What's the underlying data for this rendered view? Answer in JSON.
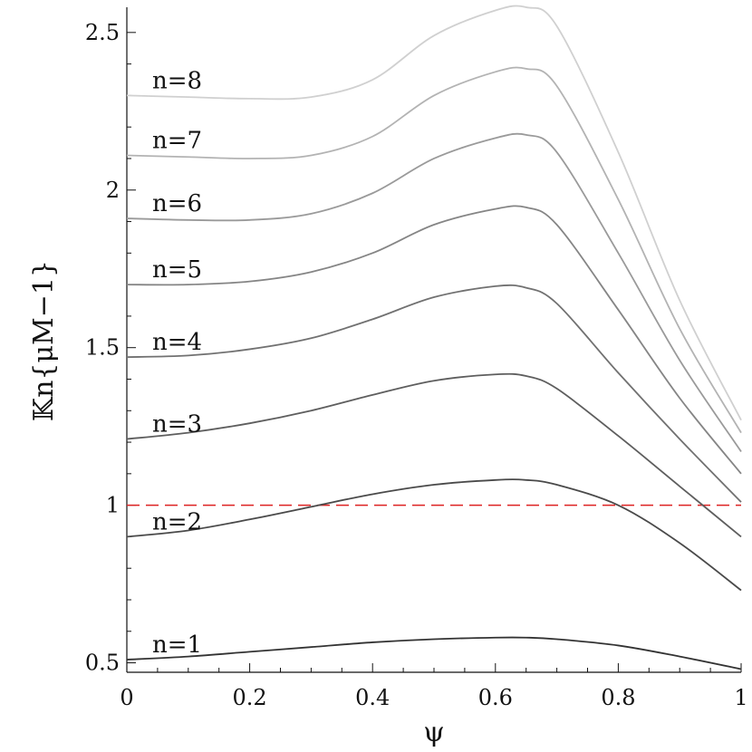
{
  "chart_data": {
    "type": "line",
    "xlabel": "ψ",
    "ylabel": "𝕂n{μM−1}",
    "xlim": [
      0,
      1
    ],
    "ylim": [
      0.47,
      2.58
    ],
    "x_ticks": [
      "0",
      "0.2",
      "0.4",
      "0.6",
      "0.8",
      "1"
    ],
    "y_ticks": [
      "0.5",
      "1",
      "1.5",
      "2",
      "2.5"
    ],
    "x": [
      0,
      0.1,
      0.2,
      0.3,
      0.4,
      0.5,
      0.6,
      0.65,
      0.7,
      0.8,
      0.9,
      1.0
    ],
    "series": [
      {
        "name": "n=1",
        "color": "#333333",
        "values": [
          0.51,
          0.52,
          0.535,
          0.55,
          0.565,
          0.575,
          0.58,
          0.58,
          0.575,
          0.555,
          0.52,
          0.48
        ]
      },
      {
        "name": "n=2",
        "color": "#4a4a4a",
        "values": [
          0.9,
          0.92,
          0.955,
          0.995,
          1.035,
          1.065,
          1.08,
          1.08,
          1.065,
          1.0,
          0.88,
          0.73
        ]
      },
      {
        "name": "n=3",
        "color": "#5e5e5e",
        "values": [
          1.21,
          1.23,
          1.26,
          1.3,
          1.35,
          1.395,
          1.415,
          1.41,
          1.37,
          1.22,
          1.06,
          0.9
        ]
      },
      {
        "name": "n=4",
        "color": "#717171",
        "values": [
          1.47,
          1.475,
          1.495,
          1.53,
          1.59,
          1.66,
          1.695,
          1.69,
          1.64,
          1.42,
          1.21,
          1.01
        ]
      },
      {
        "name": "n=5",
        "color": "#858585",
        "values": [
          1.7,
          1.7,
          1.71,
          1.74,
          1.8,
          1.89,
          1.94,
          1.945,
          1.89,
          1.62,
          1.34,
          1.1
        ]
      },
      {
        "name": "n=6",
        "color": "#9a9a9a",
        "values": [
          1.91,
          1.905,
          1.905,
          1.925,
          1.99,
          2.1,
          2.165,
          2.175,
          2.12,
          1.8,
          1.46,
          1.17
        ]
      },
      {
        "name": "n=7",
        "color": "#b3b3b3",
        "values": [
          2.11,
          2.105,
          2.1,
          2.11,
          2.17,
          2.3,
          2.375,
          2.385,
          2.33,
          1.97,
          1.56,
          1.23
        ]
      },
      {
        "name": "n=8",
        "color": "#d0d0d0",
        "values": [
          2.3,
          2.295,
          2.29,
          2.295,
          2.35,
          2.49,
          2.57,
          2.58,
          2.52,
          2.12,
          1.65,
          1.27
        ]
      }
    ],
    "reference_line": {
      "y": 1.0,
      "style": "dashed",
      "color": "#dd2222"
    },
    "grid": false,
    "legend": "inline labels at left"
  }
}
